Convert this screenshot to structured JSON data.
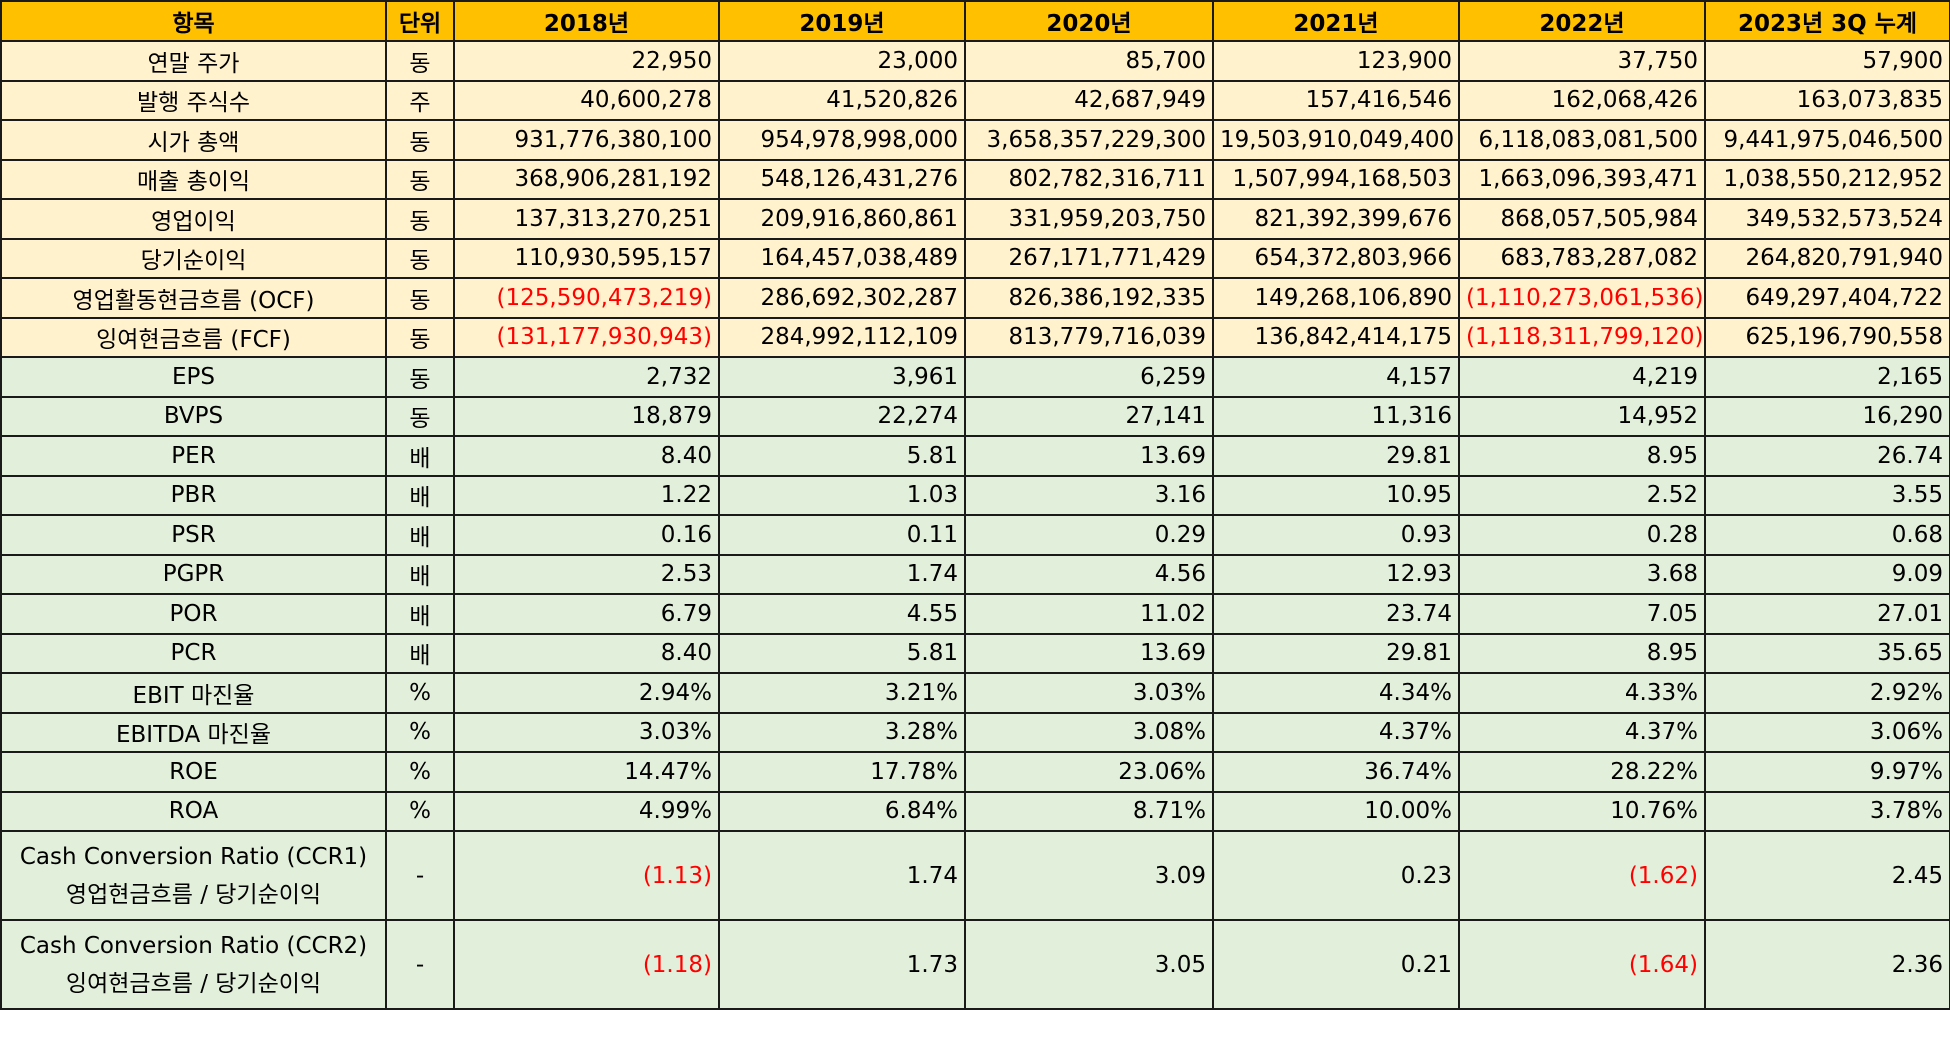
{
  "headers": [
    "항목",
    "단위",
    "2018년",
    "2019년",
    "2020년",
    "2021년",
    "2022년",
    "2023년 3Q 누계"
  ],
  "rows": [
    {
      "group": "a",
      "label": [
        "연말 주가"
      ],
      "unit": "동",
      "values": [
        "22,950",
        "23,000",
        "85,700",
        "123,900",
        "37,750",
        "57,900"
      ]
    },
    {
      "group": "a",
      "label": [
        "발행 주식수"
      ],
      "unit": "주",
      "values": [
        "40,600,278",
        "41,520,826",
        "42,687,949",
        "157,416,546",
        "162,068,426",
        "163,073,835"
      ]
    },
    {
      "group": "a",
      "label": [
        "시가 총액"
      ],
      "unit": "동",
      "values": [
        "931,776,380,100",
        "954,978,998,000",
        "3,658,357,229,300",
        "19,503,910,049,400",
        "6,118,083,081,500",
        "9,441,975,046,500"
      ]
    },
    {
      "group": "a",
      "label": [
        "매출 총이익"
      ],
      "unit": "동",
      "values": [
        "368,906,281,192",
        "548,126,431,276",
        "802,782,316,711",
        "1,507,994,168,503",
        "1,663,096,393,471",
        "1,038,550,212,952"
      ]
    },
    {
      "group": "a",
      "label": [
        "영업이익"
      ],
      "unit": "동",
      "values": [
        "137,313,270,251",
        "209,916,860,861",
        "331,959,203,750",
        "821,392,399,676",
        "868,057,505,984",
        "349,532,573,524"
      ]
    },
    {
      "group": "a",
      "label": [
        "당기순이익"
      ],
      "unit": "동",
      "values": [
        "110,930,595,157",
        "164,457,038,489",
        "267,171,771,429",
        "654,372,803,966",
        "683,783,287,082",
        "264,820,791,940"
      ]
    },
    {
      "group": "a",
      "label": [
        "영업활동현금흐름 (OCF)"
      ],
      "unit": "동",
      "values": [
        "(125,590,473,219)",
        "286,692,302,287",
        "826,386,192,335",
        "149,268,106,890",
        "(1,110,273,061,536)",
        "649,297,404,722"
      ]
    },
    {
      "group": "a",
      "label": [
        "잉여현금흐름 (FCF)"
      ],
      "unit": "동",
      "values": [
        "(131,177,930,943)",
        "284,992,112,109",
        "813,779,716,039",
        "136,842,414,175",
        "(1,118,311,799,120)",
        "625,196,790,558"
      ]
    },
    {
      "group": "b",
      "label": [
        "EPS"
      ],
      "unit": "동",
      "values": [
        "2,732",
        "3,961",
        "6,259",
        "4,157",
        "4,219",
        "2,165"
      ]
    },
    {
      "group": "b",
      "label": [
        "BVPS"
      ],
      "unit": "동",
      "values": [
        "18,879",
        "22,274",
        "27,141",
        "11,316",
        "14,952",
        "16,290"
      ]
    },
    {
      "group": "b",
      "label": [
        "PER"
      ],
      "unit": "배",
      "values": [
        "8.40",
        "5.81",
        "13.69",
        "29.81",
        "8.95",
        "26.74"
      ]
    },
    {
      "group": "b",
      "label": [
        "PBR"
      ],
      "unit": "배",
      "values": [
        "1.22",
        "1.03",
        "3.16",
        "10.95",
        "2.52",
        "3.55"
      ]
    },
    {
      "group": "b",
      "label": [
        "PSR"
      ],
      "unit": "배",
      "values": [
        "0.16",
        "0.11",
        "0.29",
        "0.93",
        "0.28",
        "0.68"
      ]
    },
    {
      "group": "b",
      "label": [
        "PGPR"
      ],
      "unit": "배",
      "values": [
        "2.53",
        "1.74",
        "4.56",
        "12.93",
        "3.68",
        "9.09"
      ]
    },
    {
      "group": "b",
      "label": [
        "POR"
      ],
      "unit": "배",
      "values": [
        "6.79",
        "4.55",
        "11.02",
        "23.74",
        "7.05",
        "27.01"
      ]
    },
    {
      "group": "b",
      "label": [
        "PCR"
      ],
      "unit": "배",
      "values": [
        "8.40",
        "5.81",
        "13.69",
        "29.81",
        "8.95",
        "35.65"
      ]
    },
    {
      "group": "b",
      "label": [
        "EBIT 마진율"
      ],
      "unit": "%",
      "values": [
        "2.94%",
        "3.21%",
        "3.03%",
        "4.34%",
        "4.33%",
        "2.92%"
      ]
    },
    {
      "group": "b",
      "label": [
        "EBITDA 마진율"
      ],
      "unit": "%",
      "values": [
        "3.03%",
        "3.28%",
        "3.08%",
        "4.37%",
        "4.37%",
        "3.06%"
      ]
    },
    {
      "group": "b",
      "label": [
        "ROE"
      ],
      "unit": "%",
      "values": [
        "14.47%",
        "17.78%",
        "23.06%",
        "36.74%",
        "28.22%",
        "9.97%"
      ]
    },
    {
      "group": "b",
      "label": [
        "ROA"
      ],
      "unit": "%",
      "values": [
        "4.99%",
        "6.84%",
        "8.71%",
        "10.00%",
        "10.76%",
        "3.78%"
      ]
    },
    {
      "group": "b",
      "label": [
        "Cash Conversion Ratio (CCR1)",
        "영업현금흐름 / 당기순이익"
      ],
      "unit": "-",
      "values": [
        "(1.13)",
        "1.74",
        "3.09",
        "0.23",
        "(1.62)",
        "2.45"
      ]
    },
    {
      "group": "b",
      "label": [
        "Cash Conversion Ratio (CCR2)",
        "잉여현금흐름 / 당기순이익"
      ],
      "unit": "-",
      "values": [
        "(1.18)",
        "1.73",
        "3.05",
        "0.21",
        "(1.64)",
        "2.36"
      ]
    }
  ],
  "colors": {
    "header": "#FFC000",
    "group_a": "#FFF2CC",
    "group_b": "#E2EFDA",
    "negative": "#FF0000"
  }
}
